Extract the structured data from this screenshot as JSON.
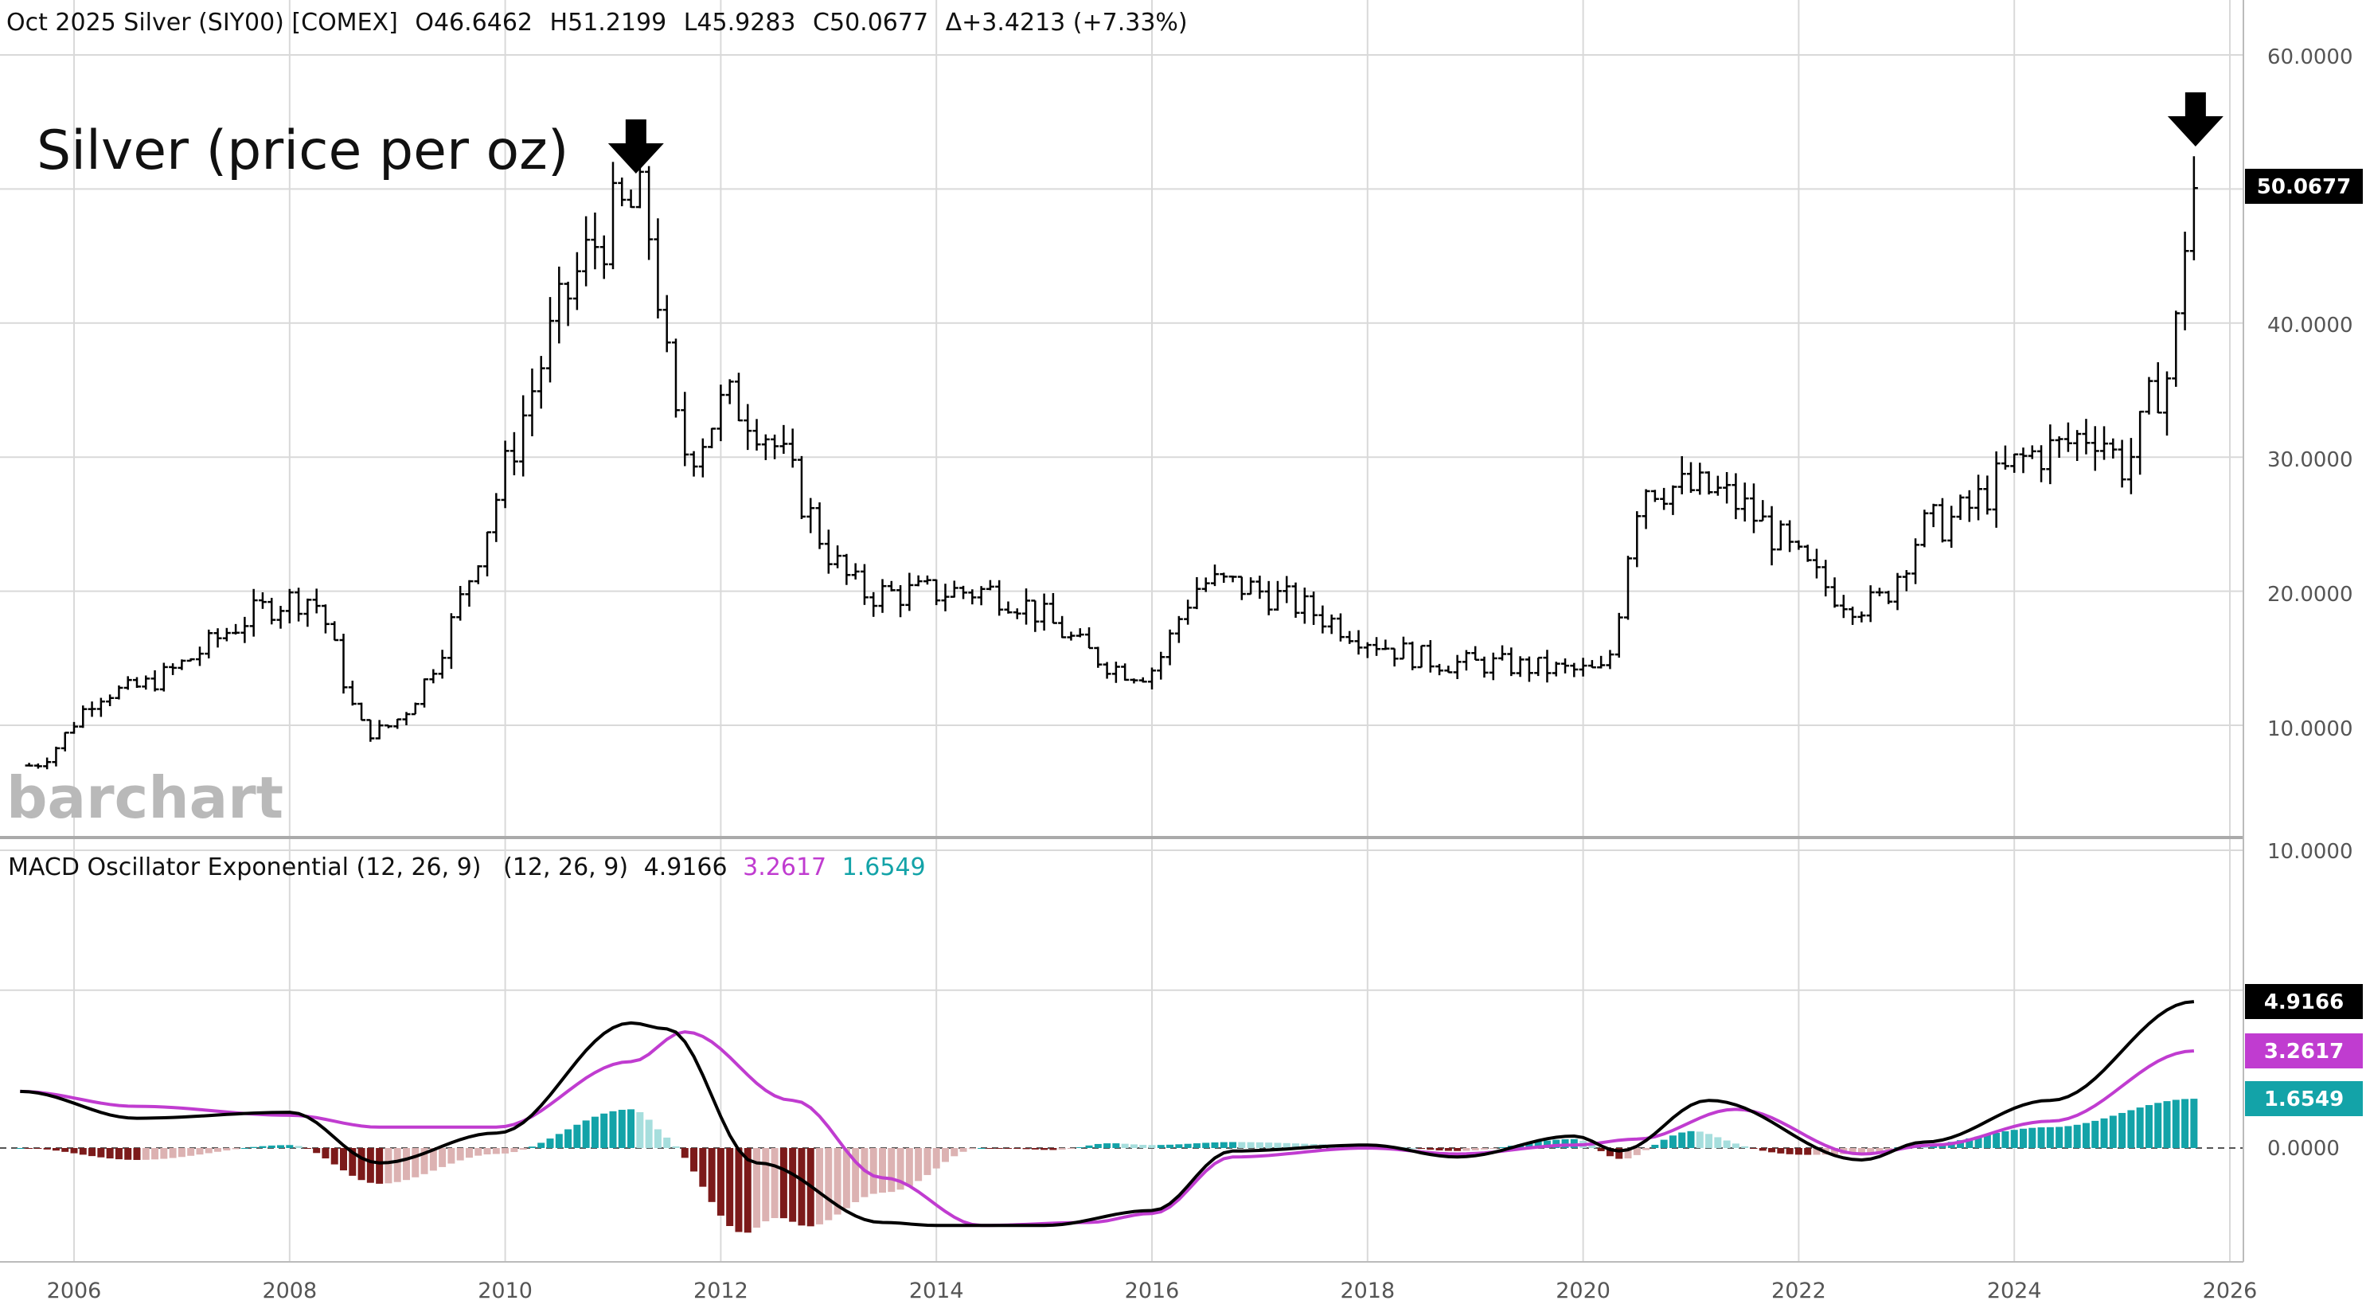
{
  "header": {
    "instrument": "Oct 2025 Silver (SIY00) [COMEX]",
    "open": "O46.6462",
    "high": "H51.2199",
    "low": "L45.9283",
    "close": "C50.0677",
    "change": "Δ+3.4213 (+7.33%)"
  },
  "annotation": "Silver (price per oz)",
  "watermark": "barchart",
  "price_panel": {
    "y_ticks": [
      "60.0000",
      "50.0000",
      "40.0000",
      "30.0000",
      "20.0000",
      "10.0000"
    ],
    "last_price_label": "50.0677"
  },
  "macd_panel": {
    "title": "MACD Oscillator Exponential (12, 26, 9)",
    "params": "(12, 26, 9)",
    "macd_value": "4.9166",
    "signal_value": "3.2617",
    "histogram_value": "1.6549",
    "top_tick": "10.0000",
    "zero_tick": "0.0000",
    "badges": {
      "macd": "4.9166",
      "signal": "3.2617",
      "histogram": "1.6549"
    }
  },
  "x_axis": {
    "years": [
      "2006",
      "2008",
      "2010",
      "2012",
      "2014",
      "2016",
      "2018",
      "2020",
      "2022",
      "2024",
      "2026"
    ]
  },
  "colors": {
    "bars": "#000000",
    "macd_line": "#000000",
    "signal_line": "#c03cd0",
    "hist_pos_strong": "#13a3a8",
    "hist_pos_weak": "#a6dedd",
    "hist_neg_strong": "#7c1a1a",
    "hist_neg_weak": "#dcb2b2",
    "grid": "#d9d9d9"
  },
  "chart_data": [
    {
      "type": "ohlc",
      "title": "Oct 2025 Silver (SIY00) [COMEX]",
      "interval": "monthly",
      "ylim": [
        5,
        62
      ],
      "y_unit": "USD per oz",
      "series": [
        {
          "name": "Silver",
          "x": [
            "2005-08",
            "2006-05",
            "2008-03",
            "2008-10",
            "2011-04",
            "2011-09",
            "2012-02",
            "2013-06",
            "2014-06",
            "2015-12",
            "2016-07",
            "2018-12",
            "2020-03",
            "2020-08",
            "2021-02",
            "2022-09",
            "2023-04",
            "2024-05",
            "2024-10",
            "2025-01",
            "2025-06",
            "2025-09"
          ],
          "close": [
            7.0,
            12.5,
            19.5,
            9.5,
            48.6,
            30.5,
            34.0,
            19.8,
            20.0,
            13.9,
            20.6,
            14.6,
            14.0,
            28.0,
            27.5,
            19.0,
            25.0,
            30.5,
            32.0,
            29.5,
            36.0,
            50.07
          ]
        }
      ],
      "markers": [
        "2011-04",
        "2025-09"
      ]
    },
    {
      "type": "line",
      "title": "MACD Oscillator Exponential (12, 26, 9)",
      "ylim": [
        -4,
        10
      ],
      "series": [
        {
          "name": "MACD",
          "x": [
            "2005-07",
            "2006-08",
            "2008-01",
            "2008-11",
            "2009-12",
            "2011-03",
            "2011-07",
            "2012-05",
            "2013-07",
            "2014-01",
            "2015-01",
            "2016-01",
            "2016-10",
            "2018-01",
            "2018-11",
            "2019-12",
            "2020-05",
            "2021-03",
            "2022-08",
            "2023-03",
            "2024-05",
            "2025-09"
          ],
          "values": [
            1.9,
            1.0,
            1.2,
            -0.5,
            0.5,
            4.2,
            4.0,
            -0.5,
            -2.5,
            -2.6,
            -2.6,
            -2.1,
            -0.1,
            0.1,
            -0.3,
            0.4,
            -0.1,
            1.6,
            -0.4,
            0.2,
            1.6,
            4.9166
          ]
        },
        {
          "name": "Signal",
          "x": [
            "2005-07",
            "2006-08",
            "2008-01",
            "2008-11",
            "2009-12",
            "2011-03",
            "2011-09",
            "2012-09",
            "2013-07",
            "2014-06",
            "2015-06",
            "2016-01",
            "2016-10",
            "2018-01",
            "2018-11",
            "2019-12",
            "2020-07",
            "2021-06",
            "2022-08",
            "2023-04",
            "2024-05",
            "2025-09"
          ],
          "values": [
            1.9,
            1.4,
            1.1,
            0.7,
            0.7,
            2.9,
            3.9,
            1.6,
            -1.0,
            -2.6,
            -2.5,
            -2.2,
            -0.3,
            0.0,
            -0.2,
            0.1,
            0.3,
            1.3,
            -0.2,
            0.1,
            0.9,
            3.2617
          ]
        },
        {
          "name": "Histogram",
          "x": [
            "2006-08",
            "2008-11",
            "2010-11",
            "2011-06",
            "2012-02",
            "2013-07",
            "2014-10",
            "2016-07",
            "2017-10",
            "2019-10",
            "2020-09",
            "2021-11",
            "2022-08",
            "2023-03",
            "2024-10",
            "2025-09"
          ],
          "values": [
            0.1,
            -0.6,
            1.0,
            -0.3,
            -1.0,
            -0.6,
            -0.2,
            0.6,
            0.1,
            0.1,
            0.6,
            -0.2,
            -0.3,
            0.0,
            0.3,
            1.6549
          ]
        }
      ]
    }
  ]
}
